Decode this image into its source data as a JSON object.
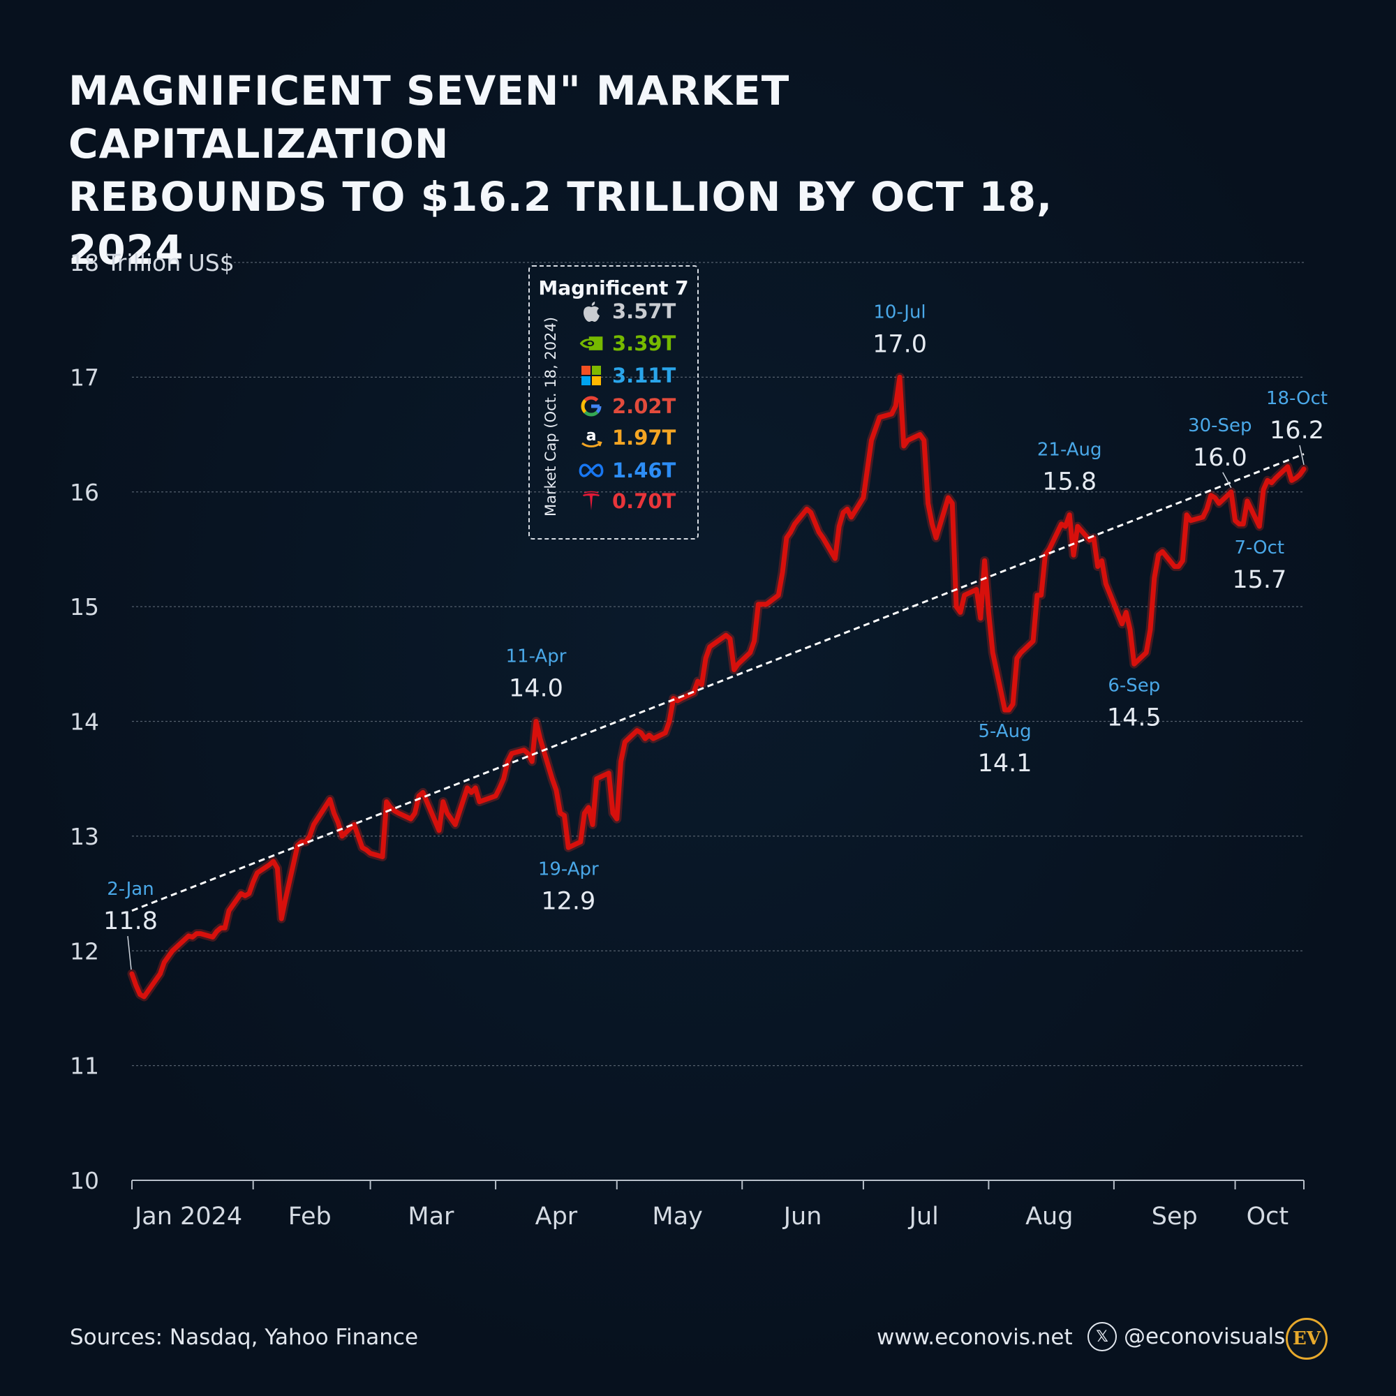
{
  "title": {
    "line1": "Magnificent Seven\" Market Capitalization",
    "line2": "Rebounds to $16.2 Trillion by Oct 18, 2024"
  },
  "legend": {
    "title": "Magnificent 7",
    "side_label": "Market Cap (Oct. 18, 2024)",
    "items": [
      {
        "icon": "apple-icon",
        "value": "3.57T",
        "color": "#c9ccd1"
      },
      {
        "icon": "nvidia-icon",
        "value": "3.39T",
        "color": "#76b900"
      },
      {
        "icon": "microsoft-icon",
        "value": "3.11T",
        "color": "#2aa5ea"
      },
      {
        "icon": "google-icon",
        "value": "2.02T",
        "color": "#e24b3c"
      },
      {
        "icon": "amazon-icon",
        "value": "1.97T",
        "color": "#f5a623"
      },
      {
        "icon": "meta-icon",
        "value": "1.46T",
        "color": "#1877f2"
      },
      {
        "icon": "tesla-icon",
        "value": "0.70T",
        "color": "#e31937"
      }
    ]
  },
  "footer": {
    "sources": "Sources: Nasdaq, Yahoo Finance",
    "site": "www.econovis.net",
    "handle": "@econovisuals",
    "x_icon": "x-logo-icon",
    "logo": "EV"
  },
  "colors": {
    "background": "#07111e",
    "line": "#d7100c",
    "annotation_date": "#4aa8e8",
    "annotation_value": "#e6ebf2",
    "trend": "#ffffff"
  },
  "chart_data": {
    "type": "line",
    "ylabel": "Trillion US$",
    "ylim": [
      10,
      18
    ],
    "yticks": [
      10,
      11,
      12,
      13,
      14,
      15,
      16,
      17,
      18
    ],
    "ytick_labels": [
      "10",
      "11",
      "12",
      "13",
      "14",
      "15",
      "16",
      "17",
      "18 Trillion US$"
    ],
    "xlim": [
      "2024-01-02",
      "2024-10-18"
    ],
    "xticks": [
      "2024-01-01",
      "2024-02-01",
      "2024-03-01",
      "2024-04-01",
      "2024-05-01",
      "2024-06-01",
      "2024-07-01",
      "2024-08-01",
      "2024-09-01",
      "2024-10-01",
      "2024-10-18"
    ],
    "x_categories": [
      "Jan 2024",
      "Feb",
      "Mar",
      "Apr",
      "May",
      "Jun",
      "Jul",
      "Aug",
      "Sep",
      "Oct"
    ],
    "month_label_dates": [
      "2024-01-16",
      "2024-02-15",
      "2024-03-16",
      "2024-04-16",
      "2024-05-16",
      "2024-06-16",
      "2024-07-16",
      "2024-08-16",
      "2024-09-16",
      "2024-10-09"
    ],
    "grid": true,
    "series": [
      {
        "color": "#d7100c",
        "points": [
          [
            "2024-01-02",
            11.8
          ],
          [
            "2024-01-03",
            11.7
          ],
          [
            "2024-01-04",
            11.62
          ],
          [
            "2024-01-05",
            11.6
          ],
          [
            "2024-01-08",
            11.75
          ],
          [
            "2024-01-09",
            11.8
          ],
          [
            "2024-01-10",
            11.9
          ],
          [
            "2024-01-11",
            11.95
          ],
          [
            "2024-01-12",
            12.0
          ],
          [
            "2024-01-16",
            12.13
          ],
          [
            "2024-01-17",
            12.12
          ],
          [
            "2024-01-18",
            12.15
          ],
          [
            "2024-01-19",
            12.15
          ],
          [
            "2024-01-22",
            12.12
          ],
          [
            "2024-01-23",
            12.17
          ],
          [
            "2024-01-24",
            12.2
          ],
          [
            "2024-01-25",
            12.2
          ],
          [
            "2024-01-26",
            12.35
          ],
          [
            "2024-01-29",
            12.5
          ],
          [
            "2024-01-30",
            12.48
          ],
          [
            "2024-01-31",
            12.5
          ],
          [
            "2024-02-01",
            12.6
          ],
          [
            "2024-02-02",
            12.68
          ],
          [
            "2024-02-05",
            12.75
          ],
          [
            "2024-02-06",
            12.78
          ],
          [
            "2024-02-07",
            12.72
          ],
          [
            "2024-02-08",
            12.28
          ],
          [
            "2024-02-09",
            12.45
          ],
          [
            "2024-02-12",
            12.92
          ],
          [
            "2024-02-13",
            12.95
          ],
          [
            "2024-02-14",
            12.95
          ],
          [
            "2024-02-15",
            13.0
          ],
          [
            "2024-02-16",
            13.1
          ],
          [
            "2024-02-20",
            13.32
          ],
          [
            "2024-02-21",
            13.2
          ],
          [
            "2024-02-22",
            13.12
          ],
          [
            "2024-02-23",
            13.0
          ],
          [
            "2024-02-26",
            13.1
          ],
          [
            "2024-02-27",
            13.0
          ],
          [
            "2024-02-28",
            12.9
          ],
          [
            "2024-02-29",
            12.88
          ],
          [
            "2024-03-01",
            12.85
          ],
          [
            "2024-03-04",
            12.82
          ],
          [
            "2024-03-05",
            13.3
          ],
          [
            "2024-03-06",
            13.25
          ],
          [
            "2024-03-07",
            13.22
          ],
          [
            "2024-03-08",
            13.2
          ],
          [
            "2024-03-11",
            13.15
          ],
          [
            "2024-03-12",
            13.2
          ],
          [
            "2024-03-13",
            13.35
          ],
          [
            "2024-03-14",
            13.38
          ],
          [
            "2024-03-15",
            13.3
          ],
          [
            "2024-03-18",
            13.05
          ],
          [
            "2024-03-19",
            13.3
          ],
          [
            "2024-03-20",
            13.2
          ],
          [
            "2024-03-21",
            13.15
          ],
          [
            "2024-03-22",
            13.1
          ],
          [
            "2024-03-25",
            13.42
          ],
          [
            "2024-03-26",
            13.38
          ],
          [
            "2024-03-27",
            13.42
          ],
          [
            "2024-03-28",
            13.3
          ],
          [
            "2024-04-01",
            13.35
          ],
          [
            "2024-04-02",
            13.42
          ],
          [
            "2024-04-03",
            13.5
          ],
          [
            "2024-04-04",
            13.65
          ],
          [
            "2024-04-05",
            13.72
          ],
          [
            "2024-04-08",
            13.75
          ],
          [
            "2024-04-09",
            13.72
          ],
          [
            "2024-04-10",
            13.65
          ],
          [
            "2024-04-11",
            14.0
          ],
          [
            "2024-04-12",
            13.85
          ],
          [
            "2024-04-15",
            13.5
          ],
          [
            "2024-04-16",
            13.4
          ],
          [
            "2024-04-17",
            13.2
          ],
          [
            "2024-04-18",
            13.18
          ],
          [
            "2024-04-19",
            12.9
          ],
          [
            "2024-04-22",
            12.95
          ],
          [
            "2024-04-23",
            13.2
          ],
          [
            "2024-04-24",
            13.25
          ],
          [
            "2024-04-25",
            13.1
          ],
          [
            "2024-04-26",
            13.5
          ],
          [
            "2024-04-29",
            13.55
          ],
          [
            "2024-04-30",
            13.2
          ],
          [
            "2024-05-01",
            13.15
          ],
          [
            "2024-05-02",
            13.65
          ],
          [
            "2024-05-03",
            13.82
          ],
          [
            "2024-05-06",
            13.92
          ],
          [
            "2024-05-07",
            13.9
          ],
          [
            "2024-05-08",
            13.85
          ],
          [
            "2024-05-09",
            13.88
          ],
          [
            "2024-05-10",
            13.85
          ],
          [
            "2024-05-13",
            13.9
          ],
          [
            "2024-05-14",
            14.0
          ],
          [
            "2024-05-15",
            14.2
          ],
          [
            "2024-05-16",
            14.18
          ],
          [
            "2024-05-17",
            14.2
          ],
          [
            "2024-05-20",
            14.25
          ],
          [
            "2024-05-21",
            14.35
          ],
          [
            "2024-05-22",
            14.32
          ],
          [
            "2024-05-23",
            14.55
          ],
          [
            "2024-05-24",
            14.65
          ],
          [
            "2024-05-28",
            14.75
          ],
          [
            "2024-05-29",
            14.72
          ],
          [
            "2024-05-30",
            14.45
          ],
          [
            "2024-05-31",
            14.5
          ],
          [
            "2024-06-03",
            14.6
          ],
          [
            "2024-06-04",
            14.7
          ],
          [
            "2024-06-05",
            15.02
          ],
          [
            "2024-06-06",
            15.02
          ],
          [
            "2024-06-07",
            15.02
          ],
          [
            "2024-06-10",
            15.1
          ],
          [
            "2024-06-11",
            15.3
          ],
          [
            "2024-06-12",
            15.6
          ],
          [
            "2024-06-13",
            15.65
          ],
          [
            "2024-06-14",
            15.72
          ],
          [
            "2024-06-17",
            15.85
          ],
          [
            "2024-06-18",
            15.82
          ],
          [
            "2024-06-20",
            15.65
          ],
          [
            "2024-06-21",
            15.6
          ],
          [
            "2024-06-24",
            15.42
          ],
          [
            "2024-06-25",
            15.7
          ],
          [
            "2024-06-26",
            15.82
          ],
          [
            "2024-06-27",
            15.85
          ],
          [
            "2024-06-28",
            15.78
          ],
          [
            "2024-07-01",
            15.95
          ],
          [
            "2024-07-02",
            16.2
          ],
          [
            "2024-07-03",
            16.45
          ],
          [
            "2024-07-05",
            16.65
          ],
          [
            "2024-07-08",
            16.68
          ],
          [
            "2024-07-09",
            16.75
          ],
          [
            "2024-07-10",
            17.0
          ],
          [
            "2024-07-11",
            16.4
          ],
          [
            "2024-07-12",
            16.45
          ],
          [
            "2024-07-15",
            16.5
          ],
          [
            "2024-07-16",
            16.45
          ],
          [
            "2024-07-17",
            15.9
          ],
          [
            "2024-07-18",
            15.72
          ],
          [
            "2024-07-19",
            15.6
          ],
          [
            "2024-07-22",
            15.95
          ],
          [
            "2024-07-23",
            15.9
          ],
          [
            "2024-07-24",
            15.0
          ],
          [
            "2024-07-25",
            14.95
          ],
          [
            "2024-07-26",
            15.1
          ],
          [
            "2024-07-29",
            15.15
          ],
          [
            "2024-07-30",
            14.9
          ],
          [
            "2024-07-31",
            15.4
          ],
          [
            "2024-08-01",
            14.95
          ],
          [
            "2024-08-02",
            14.6
          ],
          [
            "2024-08-05",
            14.1
          ],
          [
            "2024-08-06",
            14.1
          ],
          [
            "2024-08-07",
            14.15
          ],
          [
            "2024-08-08",
            14.55
          ],
          [
            "2024-08-09",
            14.6
          ],
          [
            "2024-08-12",
            14.7
          ],
          [
            "2024-08-13",
            15.1
          ],
          [
            "2024-08-14",
            15.1
          ],
          [
            "2024-08-15",
            15.45
          ],
          [
            "2024-08-16",
            15.5
          ],
          [
            "2024-08-19",
            15.72
          ],
          [
            "2024-08-20",
            15.7
          ],
          [
            "2024-08-21",
            15.8
          ],
          [
            "2024-08-22",
            15.45
          ],
          [
            "2024-08-23",
            15.7
          ],
          [
            "2024-08-26",
            15.58
          ],
          [
            "2024-08-27",
            15.6
          ],
          [
            "2024-08-28",
            15.35
          ],
          [
            "2024-08-29",
            15.4
          ],
          [
            "2024-08-30",
            15.2
          ],
          [
            "2024-09-03",
            14.85
          ],
          [
            "2024-09-04",
            14.95
          ],
          [
            "2024-09-05",
            14.8
          ],
          [
            "2024-09-06",
            14.5
          ],
          [
            "2024-09-09",
            14.6
          ],
          [
            "2024-09-10",
            14.8
          ],
          [
            "2024-09-11",
            15.25
          ],
          [
            "2024-09-12",
            15.45
          ],
          [
            "2024-09-13",
            15.48
          ],
          [
            "2024-09-16",
            15.35
          ],
          [
            "2024-09-17",
            15.35
          ],
          [
            "2024-09-18",
            15.4
          ],
          [
            "2024-09-19",
            15.8
          ],
          [
            "2024-09-20",
            15.75
          ],
          [
            "2024-09-23",
            15.78
          ],
          [
            "2024-09-24",
            15.85
          ],
          [
            "2024-09-25",
            15.97
          ],
          [
            "2024-09-26",
            15.95
          ],
          [
            "2024-09-27",
            15.9
          ],
          [
            "2024-09-30",
            16.0
          ],
          [
            "2024-10-01",
            15.75
          ],
          [
            "2024-10-02",
            15.72
          ],
          [
            "2024-10-03",
            15.72
          ],
          [
            "2024-10-04",
            15.92
          ],
          [
            "2024-10-07",
            15.7
          ],
          [
            "2024-10-08",
            16.02
          ],
          [
            "2024-10-09",
            16.1
          ],
          [
            "2024-10-10",
            16.08
          ],
          [
            "2024-10-11",
            16.12
          ],
          [
            "2024-10-14",
            16.22
          ],
          [
            "2024-10-15",
            16.1
          ],
          [
            "2024-10-16",
            16.12
          ],
          [
            "2024-10-17",
            16.15
          ],
          [
            "2024-10-18",
            16.2
          ]
        ]
      }
    ],
    "trendline": {
      "start": [
        "2024-01-02",
        12.35
      ],
      "end": [
        "2024-10-18",
        16.33
      ],
      "style": "dashed",
      "color": "#ffffff"
    },
    "annotations": [
      {
        "date": "2024-01-02",
        "date_label": "2-Jan",
        "value": "11.8",
        "position": "above",
        "leader": true
      },
      {
        "date": "2024-04-11",
        "date_label": "11-Apr",
        "value": "14.0",
        "position": "above"
      },
      {
        "date": "2024-04-19",
        "date_label": "19-Apr",
        "value": "12.9",
        "position": "below"
      },
      {
        "date": "2024-07-10",
        "date_label": "10-Jul",
        "value": "17.0",
        "position": "above"
      },
      {
        "date": "2024-08-05",
        "date_label": "5-Aug",
        "value": "14.1",
        "position": "below"
      },
      {
        "date": "2024-08-21",
        "date_label": "21-Aug",
        "value": "15.8",
        "position": "above"
      },
      {
        "date": "2024-09-06",
        "date_label": "6-Sep",
        "value": "14.5",
        "position": "below"
      },
      {
        "date": "2024-09-30",
        "date_label": "30-Sep",
        "value": "16.0",
        "position": "above",
        "leader": true
      },
      {
        "date": "2024-10-07",
        "date_label": "7-Oct",
        "value": "15.7",
        "position": "below"
      },
      {
        "date": "2024-10-18",
        "date_label": "18-Oct",
        "value": "16.2",
        "position": "above",
        "leader": true
      }
    ]
  }
}
